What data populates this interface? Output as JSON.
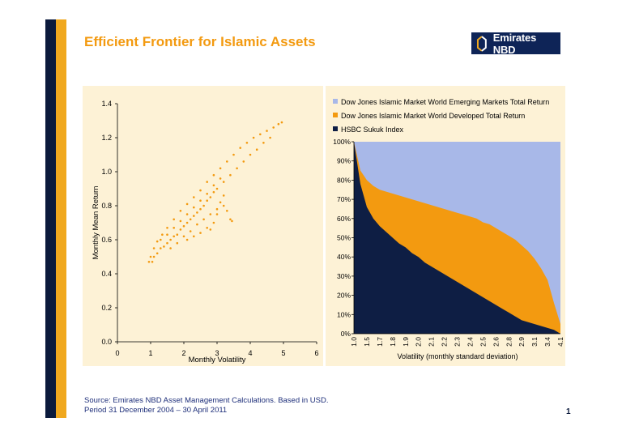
{
  "title": "Efficient Frontier for Islamic Assets",
  "logo": {
    "text": "Emirates NBD"
  },
  "footer": {
    "line1": "Source: Emirates NBD Asset Management Calculations. Based in USD.",
    "line2": "Period 31 December 2004  –  30 April 2011"
  },
  "page_number": "1",
  "colors": {
    "orange": "#f39a10",
    "navy": "#0e1e44",
    "light_blue": "#a8b8e8",
    "panel_bg": "#fdf2d6"
  },
  "chart_data": [
    {
      "type": "scatter",
      "title": "",
      "xlabel": "Monthly Volatility",
      "ylabel": "Monthly Mean Return",
      "xlim": [
        0,
        6
      ],
      "ylim": [
        0,
        1.4
      ],
      "x_ticks": [
        "0",
        "1",
        "2",
        "3",
        "4",
        "5",
        "6"
      ],
      "y_ticks": [
        "0.0",
        "0.2",
        "0.4",
        "0.6",
        "0.8",
        "1.0",
        "1.2",
        "1.4"
      ],
      "frontier_points": [
        [
          0.95,
          0.47
        ],
        [
          1.0,
          0.5
        ],
        [
          1.1,
          0.55
        ],
        [
          1.2,
          0.59
        ],
        [
          1.35,
          0.63
        ],
        [
          1.5,
          0.67
        ],
        [
          1.7,
          0.72
        ],
        [
          1.9,
          0.77
        ],
        [
          2.1,
          0.81
        ],
        [
          2.3,
          0.85
        ],
        [
          2.5,
          0.89
        ],
        [
          2.7,
          0.94
        ],
        [
          2.9,
          0.98
        ],
        [
          3.1,
          1.02
        ],
        [
          3.3,
          1.06
        ],
        [
          3.5,
          1.1
        ],
        [
          3.7,
          1.14
        ],
        [
          3.9,
          1.17
        ],
        [
          4.1,
          1.2
        ],
        [
          4.3,
          1.22
        ],
        [
          4.5,
          1.24
        ],
        [
          4.7,
          1.26
        ],
        [
          4.85,
          1.28
        ],
        [
          4.95,
          1.29
        ]
      ],
      "inner_points": [
        [
          1.05,
          0.47
        ],
        [
          1.1,
          0.5
        ],
        [
          1.2,
          0.52
        ],
        [
          1.3,
          0.55
        ],
        [
          1.4,
          0.56
        ],
        [
          1.5,
          0.58
        ],
        [
          1.6,
          0.6
        ],
        [
          1.7,
          0.62
        ],
        [
          1.8,
          0.63
        ],
        [
          1.9,
          0.66
        ],
        [
          2.0,
          0.68
        ],
        [
          2.1,
          0.7
        ],
        [
          2.2,
          0.72
        ],
        [
          2.3,
          0.74
        ],
        [
          2.4,
          0.76
        ],
        [
          2.5,
          0.78
        ],
        [
          2.6,
          0.8
        ],
        [
          2.7,
          0.83
        ],
        [
          2.8,
          0.85
        ],
        [
          2.9,
          0.88
        ],
        [
          3.0,
          0.9
        ],
        [
          3.2,
          0.94
        ],
        [
          3.4,
          0.98
        ],
        [
          3.6,
          1.02
        ],
        [
          3.8,
          1.06
        ],
        [
          4.0,
          1.1
        ],
        [
          4.2,
          1.13
        ],
        [
          4.4,
          1.17
        ],
        [
          4.6,
          1.2
        ],
        [
          1.3,
          0.6
        ],
        [
          1.5,
          0.63
        ],
        [
          1.7,
          0.67
        ],
        [
          1.9,
          0.71
        ],
        [
          2.1,
          0.75
        ],
        [
          2.3,
          0.79
        ],
        [
          2.5,
          0.83
        ],
        [
          2.7,
          0.87
        ],
        [
          2.9,
          0.92
        ],
        [
          3.1,
          0.96
        ],
        [
          1.6,
          0.55
        ],
        [
          1.8,
          0.58
        ],
        [
          2.0,
          0.62
        ],
        [
          2.2,
          0.65
        ],
        [
          2.4,
          0.69
        ],
        [
          2.6,
          0.72
        ],
        [
          2.8,
          0.75
        ],
        [
          3.0,
          0.78
        ],
        [
          3.2,
          0.8
        ],
        [
          3.4,
          0.72
        ],
        [
          3.3,
          0.77
        ],
        [
          3.1,
          0.82
        ],
        [
          2.9,
          0.7
        ],
        [
          2.7,
          0.67
        ],
        [
          2.5,
          0.64
        ],
        [
          2.3,
          0.62
        ],
        [
          2.1,
          0.6
        ],
        [
          3.45,
          0.71
        ],
        [
          3.2,
          0.86
        ],
        [
          3.0,
          0.75
        ],
        [
          2.8,
          0.66
        ]
      ]
    },
    {
      "type": "area",
      "title": "",
      "xlabel": "Volatility (monthly standard deviation)",
      "ylabel": "",
      "stacked": true,
      "ylim": [
        0,
        100
      ],
      "y_ticks": [
        "0%",
        "10%",
        "20%",
        "30%",
        "40%",
        "50%",
        "60%",
        "70%",
        "80%",
        "90%",
        "100%"
      ],
      "x_tick_labels": [
        "1.0",
        "1.5",
        "1.7",
        "1.8",
        "1.9",
        "2.0",
        "2.1",
        "2.2",
        "2.3",
        "2.4",
        "2.5",
        "2.6",
        "2.8",
        "2.9",
        "3.1",
        "3.4",
        "4.1"
      ],
      "legend_position": "top",
      "series": [
        {
          "name": "Dow Jones Islamic Market World Emerging Markets Total Return",
          "color": "#a8b8e8"
        },
        {
          "name": "Dow Jones Islamic Market World Developed Total Return",
          "color": "#f39a10"
        },
        {
          "name": "HSBC Sukuk Index",
          "color": "#0e1e44"
        }
      ],
      "sukuk_pct": [
        100,
        78,
        66,
        60,
        56,
        53,
        50,
        47,
        45,
        42,
        40,
        37,
        35,
        33,
        31,
        29,
        27,
        25,
        23,
        21,
        19,
        17,
        15,
        13,
        11,
        9,
        7,
        6,
        5,
        4,
        3,
        2,
        0
      ],
      "sukuk_plus_developed_pct": [
        100,
        85,
        80,
        77,
        75,
        74,
        73,
        72,
        71,
        70,
        69,
        68,
        67,
        66,
        65,
        64,
        63,
        62,
        61,
        60,
        58,
        57,
        55,
        53,
        51,
        49,
        46,
        43,
        39,
        34,
        28,
        16,
        5
      ]
    }
  ]
}
